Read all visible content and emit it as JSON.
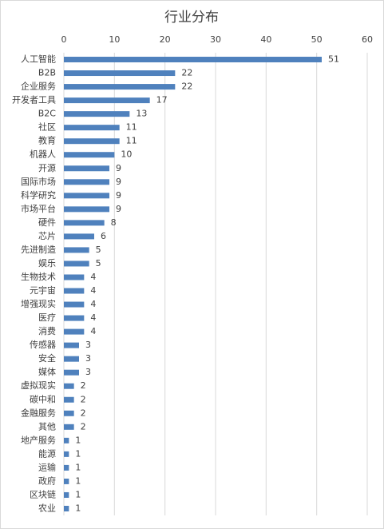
{
  "chart_data": {
    "type": "hbar",
    "title": "行业分布",
    "categories": [
      "人工智能",
      "B2B",
      "企业服务",
      "开发者工具",
      "B2C",
      "社区",
      "教育",
      "机器人",
      "开源",
      "国际市场",
      "科学研究",
      "市场平台",
      "硬件",
      "芯片",
      "先进制造",
      "娱乐",
      "生物技术",
      "元宇宙",
      "增强现实",
      "医疗",
      "消费",
      "传感器",
      "安全",
      "媒体",
      "虚拟现实",
      "碳中和",
      "金融服务",
      "其他",
      "地产服务",
      "能源",
      "运输",
      "政府",
      "区块链",
      "农业"
    ],
    "values": [
      51,
      22,
      22,
      17,
      13,
      11,
      11,
      10,
      9,
      9,
      9,
      9,
      8,
      6,
      5,
      5,
      4,
      4,
      4,
      4,
      4,
      3,
      3,
      3,
      2,
      2,
      2,
      2,
      1,
      1,
      1,
      1,
      1,
      1
    ],
    "color": "#4f81bd",
    "xlim": [
      0,
      60
    ],
    "xticks": [
      0,
      10,
      20,
      30,
      40,
      50,
      60
    ],
    "grid": true
  }
}
